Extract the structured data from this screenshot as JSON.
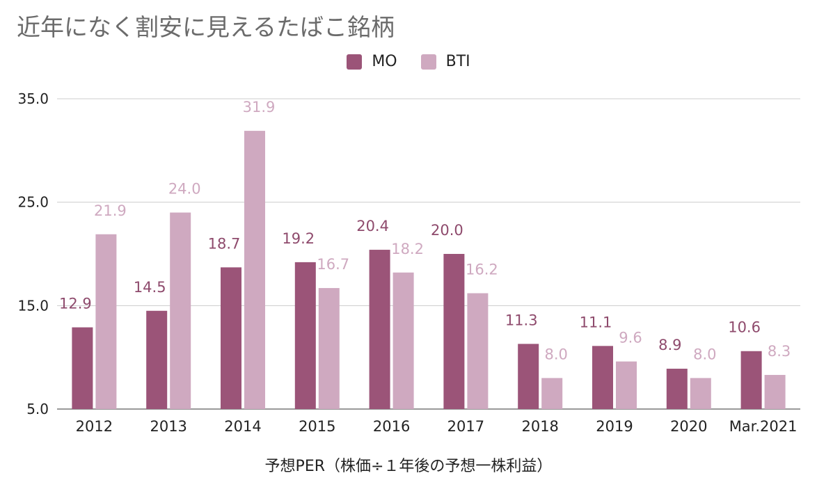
{
  "chart_data": {
    "type": "bar",
    "title": "近年になく割安に見えるたばこ銘柄",
    "xlabel": "予想PER（株価÷１年後の予想一株利益）",
    "ylabel": "",
    "categories": [
      "2012",
      "2013",
      "2014",
      "2015",
      "2016",
      "2017",
      "2018",
      "2019",
      "2020",
      "Mar.2021"
    ],
    "series": [
      {
        "name": "MO",
        "color": "#9b5478",
        "label_color": "#8e4a6c",
        "values": [
          12.9,
          14.5,
          18.7,
          19.2,
          20.4,
          20.0,
          11.3,
          11.1,
          8.9,
          10.6
        ]
      },
      {
        "name": "BTI",
        "color": "#cfa9c0",
        "label_color": "#cfa9c0",
        "values": [
          21.9,
          24.0,
          31.9,
          16.7,
          18.2,
          16.2,
          8.0,
          9.6,
          8.0,
          8.3
        ]
      }
    ],
    "yticks": [
      "35.0",
      "25.0",
      "15.0",
      "5.0"
    ],
    "ylim": [
      5,
      35
    ],
    "grid": true,
    "legend_position": "top-center"
  }
}
